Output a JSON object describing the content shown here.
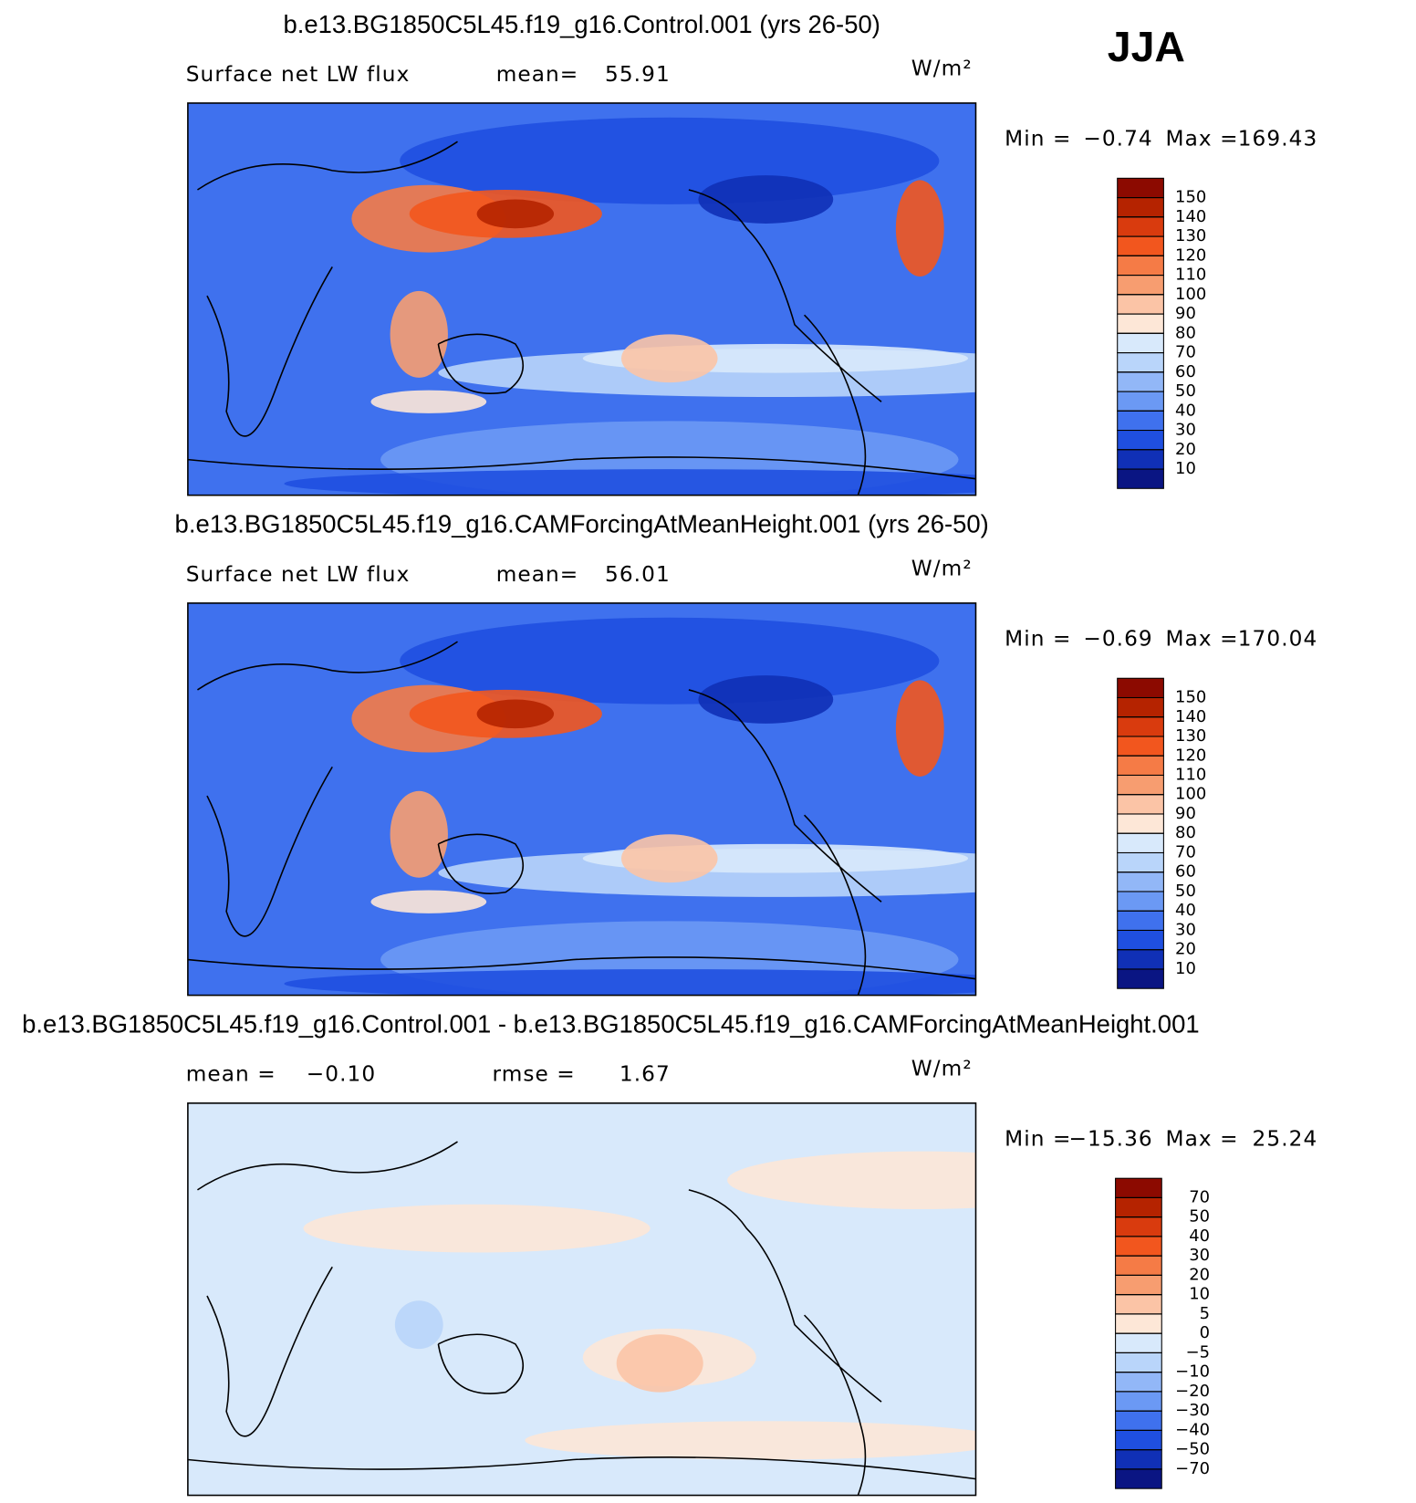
{
  "season": "JJA",
  "units": "W/m²",
  "panels": [
    {
      "title": "b.e13.BG1850C5L45.f19_g16.Control.001 (yrs 26-50)",
      "header": [
        "Surface net LW flux",
        "mean=",
        55.91
      ],
      "range": [
        "Min =",
        {
          "value": -0.74,
          "label": "−0.74"
        },
        "Max =",
        169.43
      ],
      "levels": [
        150,
        140,
        130,
        120,
        110,
        100,
        90,
        80,
        70,
        60,
        50,
        40,
        30,
        20,
        10
      ],
      "colors": [
        "#8c0a00",
        "#b52300",
        "#d93b0e",
        "#f2561e",
        "#f57b46",
        "#f79d70",
        "#fbc4a6",
        "#fde7d7",
        "#d8e9fb",
        "#b9d5fa",
        "#92b7f7",
        "#6b99f4",
        "#3f71ee",
        "#1f4fe0",
        "#1030b6",
        "#0a1583"
      ]
    },
    {
      "title": "b.e13.BG1850C5L45.f19_g16.CAMForcingAtMeanHeight.001 (yrs 26-50)",
      "header": [
        "Surface net LW flux",
        "mean=",
        56.01
      ],
      "range": [
        "Min =",
        {
          "value": -0.69,
          "label": "−0.69"
        },
        "Max =",
        170.04
      ],
      "levels": [
        150,
        140,
        130,
        120,
        110,
        100,
        90,
        80,
        70,
        60,
        50,
        40,
        30,
        20,
        10
      ],
      "colors": [
        "#8c0a00",
        "#b52300",
        "#d93b0e",
        "#f2561e",
        "#f57b46",
        "#f79d70",
        "#fbc4a6",
        "#fde7d7",
        "#d8e9fb",
        "#b9d5fa",
        "#92b7f7",
        "#6b99f4",
        "#3f71ee",
        "#1f4fe0",
        "#1030b6",
        "#0a1583"
      ]
    },
    {
      "title": "b.e13.BG1850C5L45.f19_g16.Control.001 - b.e13.BG1850C5L45.f19_g16.CAMForcingAtMeanHeight.001",
      "header": [
        "mean =",
        {
          "value": -0.1,
          "label": "−0.10"
        },
        "rmse =",
        1.67
      ],
      "range": [
        "Min =",
        {
          "value": -15.36,
          "label": "−15.36"
        },
        "Max =",
        25.24
      ],
      "levels": [
        70,
        50,
        40,
        30,
        20,
        10,
        5,
        0,
        {
          "value": -5,
          "label": "−5"
        },
        {
          "value": -10,
          "label": "−10"
        },
        {
          "value": -20,
          "label": "−20"
        },
        {
          "value": -30,
          "label": "−30"
        },
        {
          "value": -40,
          "label": "−40"
        },
        {
          "value": -50,
          "label": "−50"
        },
        {
          "value": -70,
          "label": "−70"
        }
      ],
      "colors": [
        "#8c0a00",
        "#b52300",
        "#d93b0e",
        "#f2561e",
        "#f57b46",
        "#f79d70",
        "#fbc4a6",
        "#fde7d7",
        "#d8e9fb",
        "#b9d5fa",
        "#92b7f7",
        "#6b99f4",
        "#3f71ee",
        "#1f4fe0",
        "#1030b6",
        "#0a1583"
      ]
    }
  ]
}
